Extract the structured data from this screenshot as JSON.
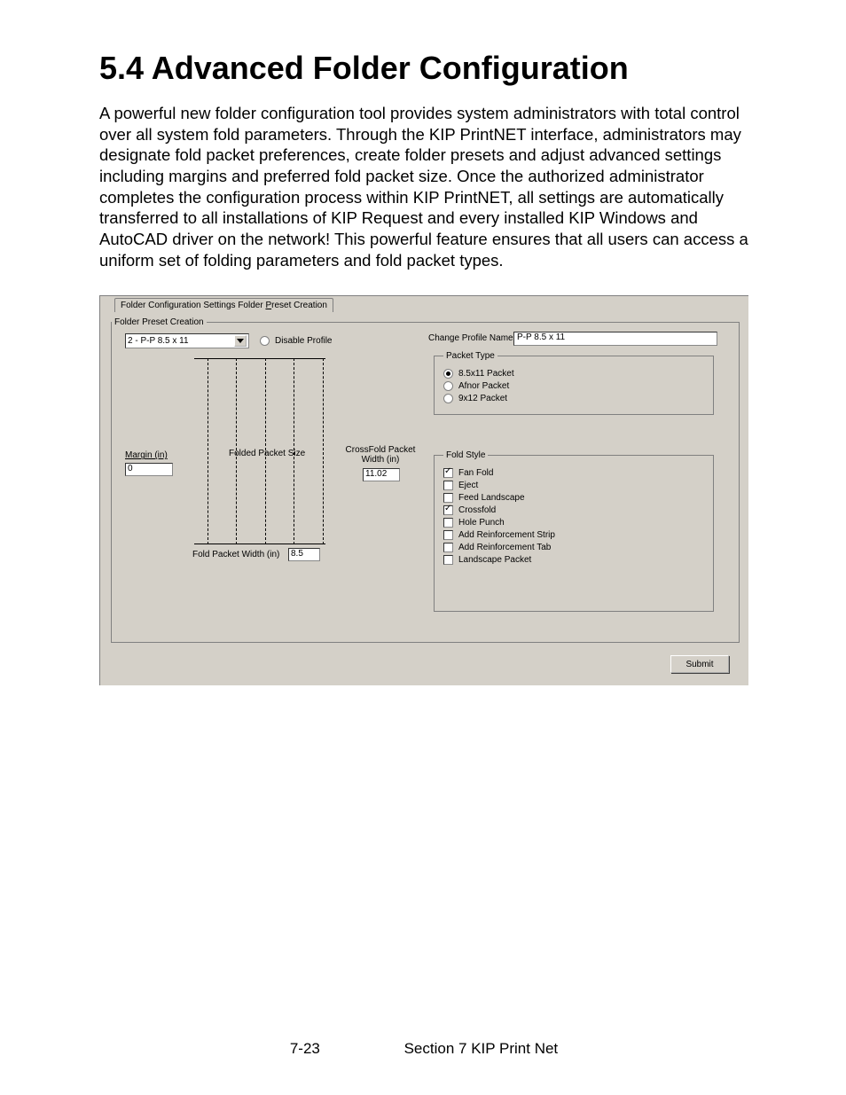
{
  "heading": "5.4 Advanced Folder Configuration",
  "body_text": "A powerful new folder configuration tool provides system administrators with total control over all system fold parameters. Through the KIP PrintNET interface, administrators may designate fold packet preferences, create folder presets and adjust advanced settings including margins and preferred fold packet size. Once the authorized administrator completes the configuration process within KIP PrintNET, all settings are automatically transferred to all installations of KIP Request and every installed KIP Windows and AutoCAD driver on the network! This powerful feature ensures that all users can access a uniform set of folding parameters and fold packet types.",
  "tabs": {
    "t1": "Folder Configuration Settings",
    "t2_pre": "Folder ",
    "t2_u": "P",
    "t2_post": "reset Creation"
  },
  "outer_legend": "Folder Preset Creation",
  "profile_select": "2 - P-P 8.5 x 11",
  "disable_profile_label": "Disable Profile",
  "labels": {
    "margin": "Margin (in)",
    "folded_packet_size": "Folded Packet Size",
    "crossfold_packet_width": "CrossFold Packet Width (in)",
    "fold_packet_width": "Fold Packet Width (in)",
    "change_profile_name": "Change Profile Name:"
  },
  "inputs": {
    "margin_value": "0",
    "crossfold_value": "11.02",
    "fold_packet_width_value": "8.5",
    "change_name_value": "P-P 8.5 x 11"
  },
  "packet_type": {
    "legend": "Packet Type",
    "opts": [
      "8.5x11 Packet",
      "Afnor Packet",
      "9x12 Packet"
    ],
    "selected": 0
  },
  "fold_style": {
    "legend": "Fold Style",
    "opts": [
      {
        "label": "Fan Fold",
        "checked": true
      },
      {
        "label": "Eject",
        "checked": false
      },
      {
        "label": "Feed Landscape",
        "checked": false
      },
      {
        "label": "Crossfold",
        "checked": true
      },
      {
        "label": "Hole Punch",
        "checked": false
      },
      {
        "label": "Add Reinforcement Strip",
        "checked": false
      },
      {
        "label": "Add Reinforcement Tab",
        "checked": false
      },
      {
        "label": "Landscape Packet",
        "checked": false
      }
    ]
  },
  "submit_label": "Submit",
  "footer": {
    "page": "7-23",
    "section": "Section 7   KIP Print Net"
  },
  "diagram": {
    "dash_positions_pct": [
      10,
      32,
      54,
      76,
      98
    ]
  },
  "colors": {
    "win_bg": "#d4d0c8",
    "border": "#808080",
    "text": "#000000",
    "input_bg": "#ffffff"
  }
}
